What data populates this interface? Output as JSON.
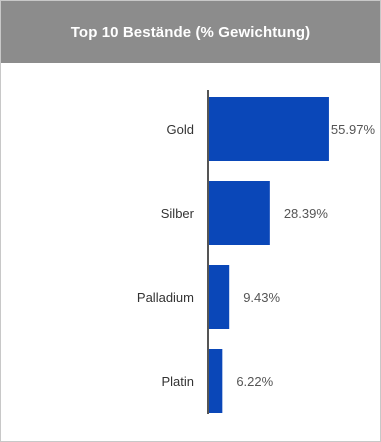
{
  "header": {
    "title": "Top 10 Bestände (% Gewichtung)"
  },
  "colors": {
    "bar": "#0a47b8",
    "axis": "#555555",
    "header_bg": "#8c8c8c"
  },
  "chart_data": {
    "type": "bar",
    "orientation": "horizontal",
    "title": "Top 10 Bestände (% Gewichtung)",
    "categories": [
      "Gold",
      "Silber",
      "Palladium",
      "Platin"
    ],
    "values": [
      55.97,
      28.39,
      9.43,
      6.22
    ],
    "value_labels": [
      "55.97%",
      "28.39%",
      "9.43%",
      "6.22%"
    ],
    "xlim": [
      0,
      56
    ],
    "grid": false,
    "legend": "none"
  }
}
